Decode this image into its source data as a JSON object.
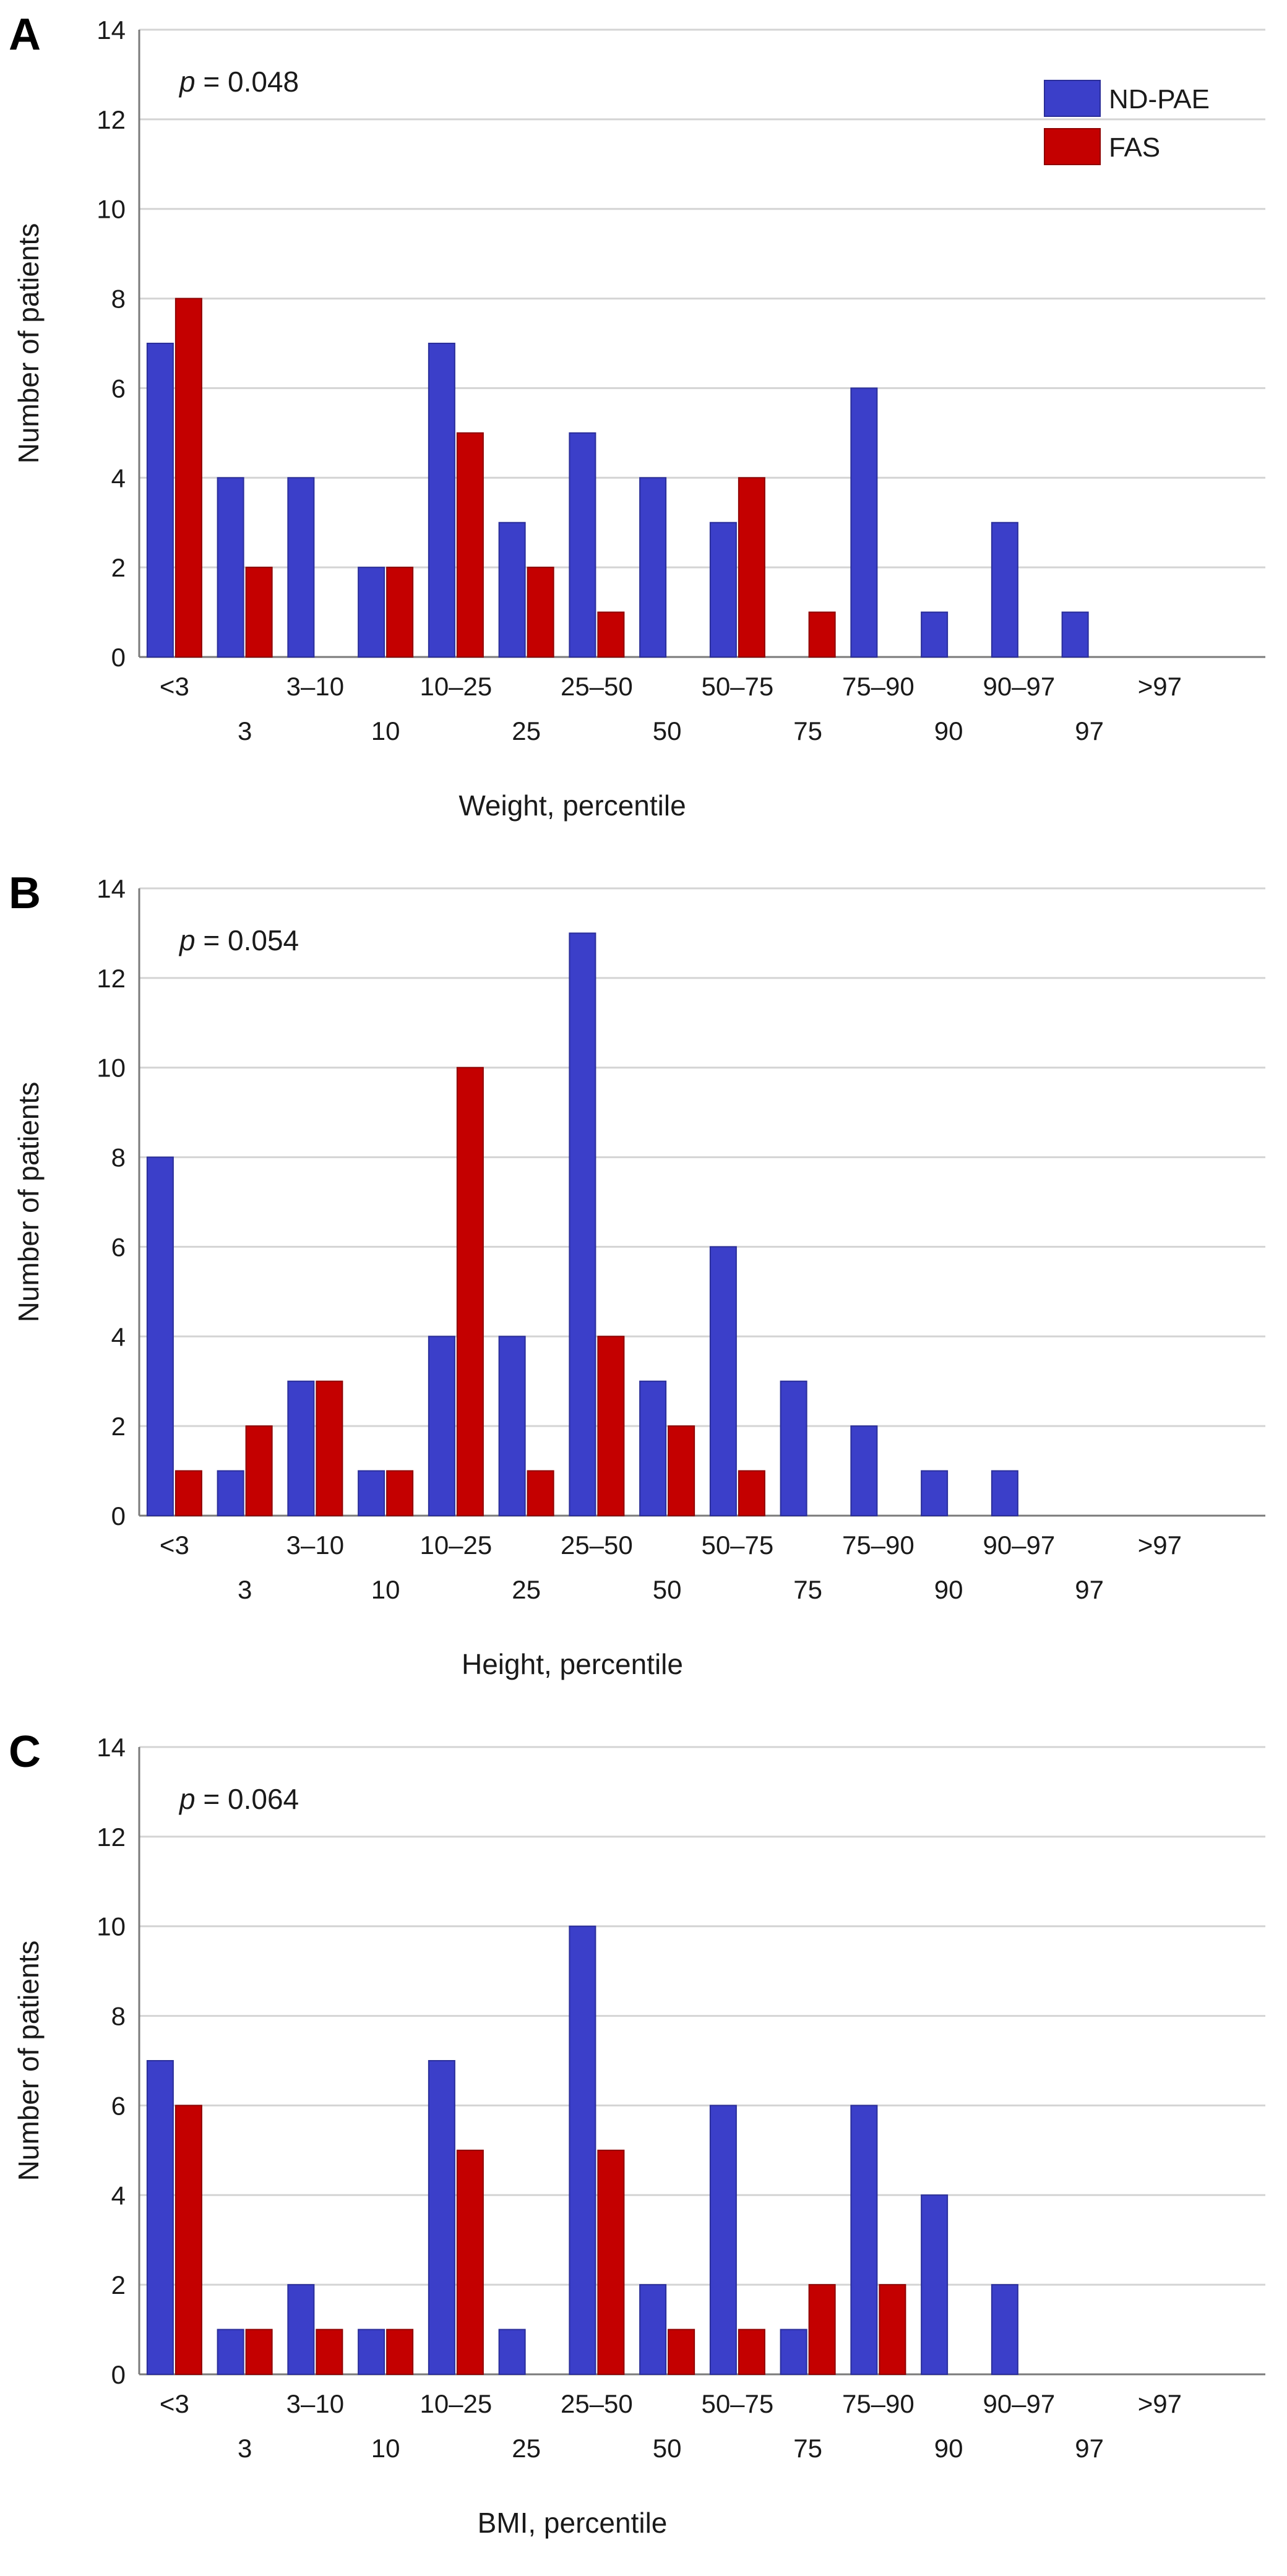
{
  "legend": [
    {
      "label": "ND-PAE",
      "color": "#3b3fc9"
    },
    {
      "label": "FAS",
      "color": "#c40000"
    }
  ],
  "chart_data": [
    {
      "type": "bar",
      "panel": "A",
      "p_label": "p",
      "p_text": " = 0.048",
      "ylabel": "Number of patients",
      "xlabel": "Weight, percentile",
      "ylim": [
        0,
        14
      ],
      "yticks": [
        0,
        2,
        4,
        6,
        8,
        10,
        12,
        14
      ],
      "category_labels": [
        "<3",
        "3–10",
        "10–25",
        "25–50",
        "50–75",
        "75–90",
        "90–97",
        ">97"
      ],
      "boundary_labels": [
        "3",
        "10",
        "25",
        "50",
        "75",
        "90",
        "97"
      ],
      "series": [
        {
          "name": "ND-PAE",
          "values": [
            7,
            4,
            4,
            2,
            7,
            3,
            5,
            4,
            3,
            0,
            6,
            1,
            3,
            1,
            0,
            0
          ]
        },
        {
          "name": "FAS",
          "values": [
            8,
            2,
            0,
            2,
            5,
            2,
            1,
            0,
            4,
            1,
            0,
            0,
            0,
            0,
            0,
            0
          ]
        }
      ]
    },
    {
      "type": "bar",
      "panel": "B",
      "p_label": "p",
      "p_text": " = 0.054",
      "ylabel": "Number of patients",
      "xlabel": "Height, percentile",
      "ylim": [
        0,
        14
      ],
      "yticks": [
        0,
        2,
        4,
        6,
        8,
        10,
        12,
        14
      ],
      "category_labels": [
        "<3",
        "3–10",
        "10–25",
        "25–50",
        "50–75",
        "75–90",
        "90–97",
        ">97"
      ],
      "boundary_labels": [
        "3",
        "10",
        "25",
        "50",
        "75",
        "90",
        "97"
      ],
      "series": [
        {
          "name": "ND-PAE",
          "values": [
            8,
            1,
            3,
            1,
            4,
            4,
            13,
            3,
            6,
            3,
            2,
            1,
            1,
            0,
            0,
            0
          ]
        },
        {
          "name": "FAS",
          "values": [
            1,
            2,
            3,
            1,
            10,
            1,
            4,
            2,
            1,
            0,
            0,
            0,
            0,
            0,
            0,
            0
          ]
        }
      ]
    },
    {
      "type": "bar",
      "panel": "C",
      "p_label": "p",
      "p_text": " = 0.064",
      "ylabel": "Number of patients",
      "xlabel": "BMI, percentile",
      "ylim": [
        0,
        14
      ],
      "yticks": [
        0,
        2,
        4,
        6,
        8,
        10,
        12,
        14
      ],
      "category_labels": [
        "<3",
        "3–10",
        "10–25",
        "25–50",
        "50–75",
        "75–90",
        "90–97",
        ">97"
      ],
      "boundary_labels": [
        "3",
        "10",
        "25",
        "50",
        "75",
        "90",
        "97"
      ],
      "series": [
        {
          "name": "ND-PAE",
          "values": [
            7,
            1,
            2,
            1,
            7,
            1,
            10,
            2,
            6,
            1,
            6,
            4,
            2,
            0,
            0,
            0
          ]
        },
        {
          "name": "FAS",
          "values": [
            6,
            1,
            1,
            1,
            5,
            0,
            5,
            1,
            1,
            2,
            2,
            0,
            0,
            0,
            0,
            0
          ]
        }
      ]
    }
  ]
}
